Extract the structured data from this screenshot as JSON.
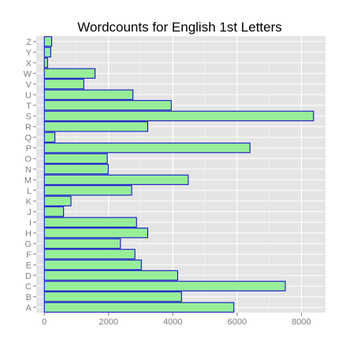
{
  "chart_data": {
    "type": "bar",
    "orientation": "horizontal",
    "title": "Wordcounts for English 1st Letters",
    "xlabel": "",
    "ylabel": "",
    "categories": [
      "A",
      "B",
      "C",
      "D",
      "E",
      "F",
      "G",
      "H",
      "I",
      "J",
      "K",
      "L",
      "M",
      "N",
      "O",
      "P",
      "Q",
      "R",
      "S",
      "T",
      "U",
      "V",
      "W",
      "X",
      "Y",
      "Z"
    ],
    "values": [
      5900,
      4270,
      7500,
      4150,
      3020,
      2820,
      2370,
      3220,
      2870,
      600,
      830,
      2720,
      4480,
      1990,
      1960,
      6400,
      330,
      3220,
      8380,
      3950,
      2760,
      1230,
      1580,
      100,
      200,
      230
    ],
    "xlim": [
      -250,
      8750
    ],
    "x_ticks": [
      "0",
      "2000",
      "4000",
      "6000",
      "8000"
    ],
    "bar_fill": "#98ee98",
    "bar_stroke": "#0000cc",
    "panel_background": "#e5e5e5",
    "grid": true,
    "legend": "none"
  }
}
